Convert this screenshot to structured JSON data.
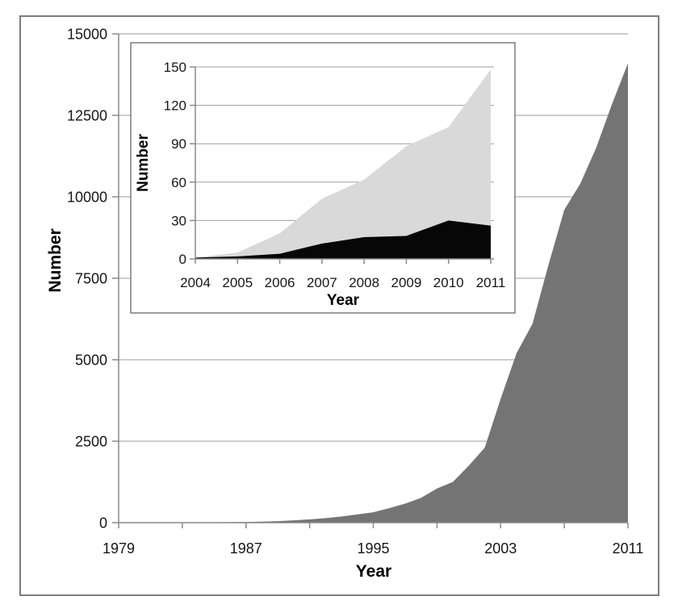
{
  "figure": {
    "background": "#ffffff",
    "border_color": "#7c7c7c"
  },
  "chart_data": [
    {
      "id": "main-chart",
      "type": "area",
      "title": "",
      "xlabel": "Year",
      "ylabel": "Number",
      "xlim": [
        1979,
        2011
      ],
      "ylim": [
        0,
        15000
      ],
      "grid": "horizontal",
      "legend": false,
      "colors": {
        "grid": "#9e9e9e",
        "axis": "#8a8a8a",
        "text": "#161616"
      },
      "x": [
        1979,
        1980,
        1981,
        1982,
        1983,
        1984,
        1985,
        1986,
        1987,
        1988,
        1989,
        1990,
        1991,
        1992,
        1993,
        1994,
        1995,
        1996,
        1997,
        1998,
        1999,
        2000,
        2001,
        2002,
        2003,
        2004,
        2005,
        2006,
        2007,
        2008,
        2009,
        2010,
        2011
      ],
      "series": [
        {
          "name": "dark-gray-area",
          "color": "#747474",
          "values": [
            2,
            3,
            5,
            6,
            8,
            10,
            13,
            16,
            22,
            30,
            45,
            70,
            100,
            140,
            190,
            255,
            320,
            445,
            585,
            760,
            1050,
            1250,
            1750,
            2300,
            3800,
            5200,
            6100,
            7900,
            9600,
            10400,
            11500,
            12850,
            14100
          ]
        }
      ],
      "y_axis": {
        "title": "Number",
        "ticks": [
          {
            "v": 0,
            "label": "0"
          },
          {
            "v": 2500,
            "label": "2500"
          },
          {
            "v": 5000,
            "label": "5000"
          },
          {
            "v": 7500,
            "label": "7500"
          },
          {
            "v": 10000,
            "label": "10000"
          },
          {
            "v": 12500,
            "label": "12500"
          },
          {
            "v": 15000,
            "label": "15000"
          }
        ]
      },
      "x_axis": {
        "title": "Year",
        "minor_ticks": [
          1979,
          1983,
          1987,
          1991,
          1995,
          1999,
          2003,
          2007,
          2011
        ],
        "labels": [
          {
            "v": 1979,
            "label": "1979"
          },
          {
            "v": 1987,
            "label": "1987"
          },
          {
            "v": 1995,
            "label": "1995"
          },
          {
            "v": 2003,
            "label": "2003"
          },
          {
            "v": 2011,
            "label": "2011"
          }
        ]
      }
    },
    {
      "id": "inset-chart",
      "type": "area",
      "title": "",
      "xlabel": "Year",
      "ylabel": "Number",
      "xlim": [
        2004,
        2011
      ],
      "ylim": [
        0,
        150
      ],
      "grid": "horizontal",
      "legend": false,
      "colors": {
        "grid": "#9e9e9e",
        "axis": "#8a8a8a",
        "text": "#161616"
      },
      "x": [
        2004,
        2005,
        2006,
        2007,
        2008,
        2009,
        2010,
        2011
      ],
      "series": [
        {
          "name": "light-gray-area",
          "color": "#d9d9d9",
          "values": [
            1,
            5,
            20,
            47,
            62,
            88,
            103,
            148
          ]
        },
        {
          "name": "black-area",
          "color": "#070707",
          "values": [
            1,
            2,
            4,
            12,
            17,
            18,
            30,
            26
          ]
        }
      ],
      "y_axis": {
        "title": "Number",
        "ticks": [
          {
            "v": 0,
            "label": "0"
          },
          {
            "v": 30,
            "label": "30"
          },
          {
            "v": 60,
            "label": "60"
          },
          {
            "v": 90,
            "label": "90"
          },
          {
            "v": 120,
            "label": "120"
          },
          {
            "v": 150,
            "label": "150"
          }
        ]
      },
      "x_axis": {
        "title": "Year",
        "minor_ticks": [
          2004,
          2005,
          2006,
          2007,
          2008,
          2009,
          2010,
          2011
        ],
        "labels": [
          {
            "v": 2004,
            "label": "2004"
          },
          {
            "v": 2005,
            "label": "2005"
          },
          {
            "v": 2006,
            "label": "2006"
          },
          {
            "v": 2007,
            "label": "2007"
          },
          {
            "v": 2008,
            "label": "2008"
          },
          {
            "v": 2009,
            "label": "2009"
          },
          {
            "v": 2010,
            "label": "2010"
          },
          {
            "v": 2011,
            "label": "2011"
          }
        ]
      }
    }
  ]
}
